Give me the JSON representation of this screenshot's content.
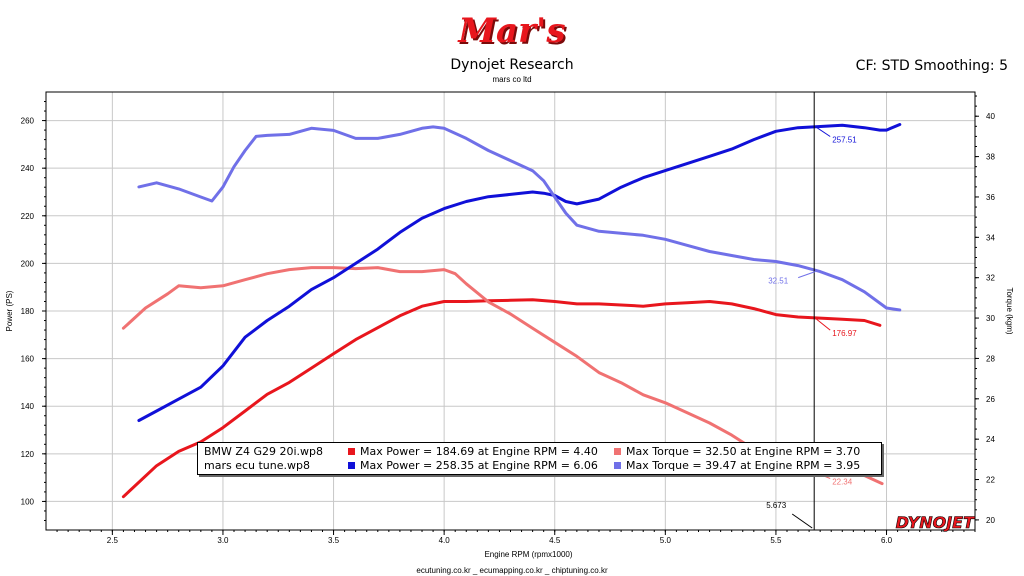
{
  "header": {
    "logo_text": "Mar's",
    "title": "Dynojet Research",
    "subtitle": "mars co ltd",
    "settings": "CF: STD Smoothing: 5"
  },
  "footer": "ecutuning.co.kr _ ecumapping.co.kr _ chiptuning.co.kr",
  "brand": "DYNOJET",
  "colors": {
    "stock_power": "#e8161d",
    "stock_torque": "#f07272",
    "tune_power": "#1010d8",
    "tune_torque": "#7070e8"
  },
  "chart_data": {
    "type": "line",
    "xlabel": "Engine RPM (rpmx1000)",
    "ylabel": "Power (PS)",
    "y2label": "Torque (kgm)",
    "xlim": [
      2.2,
      6.4
    ],
    "ylim": [
      88,
      272
    ],
    "y2lim": [
      19.5,
      41.2
    ],
    "x_ticks": [
      "2.5",
      "3.0",
      "3.5",
      "4.0",
      "4.5",
      "5.0",
      "5.5",
      "6.0"
    ],
    "y_ticks": [
      "100",
      "120",
      "140",
      "160",
      "180",
      "200",
      "220",
      "240",
      "260"
    ],
    "y2_ticks": [
      "20",
      "22",
      "24",
      "26",
      "28",
      "30",
      "32",
      "34",
      "36",
      "38",
      "40"
    ],
    "cursor": {
      "x": 5.673,
      "label": "5.673"
    },
    "cursor_values": {
      "tune_power": "257.51",
      "tune_torque": "32.51",
      "stock_power": "176.97",
      "stock_torque": "22.34"
    },
    "series": [
      {
        "name": "Max Power",
        "file": "BMW Z4 G29 20i.wp8",
        "axis": "left",
        "color": "#e8161d",
        "x": [
          2.55,
          2.7,
          2.8,
          2.9,
          3.0,
          3.1,
          3.2,
          3.3,
          3.4,
          3.5,
          3.6,
          3.7,
          3.8,
          3.9,
          4.0,
          4.1,
          4.2,
          4.3,
          4.4,
          4.5,
          4.6,
          4.7,
          4.8,
          4.9,
          5.0,
          5.1,
          5.2,
          5.3,
          5.4,
          5.5,
          5.6,
          5.7,
          5.8,
          5.9,
          5.97
        ],
        "y": [
          102,
          115,
          121,
          125,
          131,
          138,
          145,
          150,
          156,
          162,
          168,
          173,
          178,
          182,
          184,
          184,
          184.3,
          184.5,
          184.69,
          184,
          183,
          183,
          182.5,
          182,
          183,
          183.5,
          184,
          183,
          181,
          178.5,
          177.5,
          177,
          176.5,
          176,
          174
        ]
      },
      {
        "name": "Max Torque",
        "file": "BMW Z4 G29 20i.wp8",
        "axis": "right",
        "color": "#f07272",
        "x": [
          2.55,
          2.65,
          2.75,
          2.8,
          2.9,
          3.0,
          3.1,
          3.2,
          3.3,
          3.4,
          3.5,
          3.6,
          3.7,
          3.8,
          3.9,
          4.0,
          4.05,
          4.1,
          4.2,
          4.3,
          4.4,
          4.5,
          4.6,
          4.7,
          4.8,
          4.9,
          5.0,
          5.1,
          5.2,
          5.3,
          5.4,
          5.5,
          5.6,
          5.7,
          5.8,
          5.9,
          5.98
        ],
        "y": [
          29.5,
          30.5,
          31.2,
          31.6,
          31.5,
          31.6,
          31.9,
          32.2,
          32.4,
          32.5,
          32.5,
          32.45,
          32.5,
          32.3,
          32.3,
          32.4,
          32.2,
          31.7,
          30.8,
          30.2,
          29.5,
          28.8,
          28.1,
          27.3,
          26.8,
          26.2,
          25.8,
          25.3,
          24.8,
          24.2,
          23.5,
          23,
          22.7,
          22.5,
          22.35,
          22.2,
          21.8
        ]
      },
      {
        "name": "Max Power",
        "file": "mars ecu tune.wp8",
        "axis": "left",
        "color": "#1010d8",
        "x": [
          2.62,
          2.7,
          2.8,
          2.9,
          3.0,
          3.1,
          3.2,
          3.3,
          3.4,
          3.5,
          3.6,
          3.7,
          3.8,
          3.9,
          4.0,
          4.1,
          4.2,
          4.3,
          4.4,
          4.45,
          4.5,
          4.55,
          4.6,
          4.7,
          4.8,
          4.9,
          5.0,
          5.1,
          5.2,
          5.3,
          5.4,
          5.5,
          5.6,
          5.7,
          5.8,
          5.9,
          5.97,
          6.0,
          6.06
        ],
        "y": [
          134,
          138,
          143,
          148,
          157,
          169,
          176,
          182,
          189,
          194,
          200,
          206,
          213,
          219,
          223,
          226,
          228,
          229,
          230,
          229.5,
          228.5,
          226,
          225,
          227,
          232,
          236,
          239,
          242,
          245,
          248,
          252,
          255.5,
          257,
          257.5,
          258,
          257,
          256,
          256,
          258.35
        ]
      },
      {
        "name": "Max Torque",
        "file": "mars ecu tune.wp8",
        "axis": "right",
        "color": "#7070e8",
        "x": [
          2.62,
          2.7,
          2.8,
          2.9,
          2.95,
          3.0,
          3.05,
          3.1,
          3.15,
          3.2,
          3.3,
          3.4,
          3.5,
          3.6,
          3.7,
          3.8,
          3.9,
          3.95,
          4.0,
          4.1,
          4.2,
          4.3,
          4.4,
          4.45,
          4.5,
          4.55,
          4.6,
          4.7,
          4.8,
          4.9,
          5.0,
          5.1,
          5.2,
          5.3,
          5.4,
          5.5,
          5.6,
          5.7,
          5.8,
          5.9,
          6.0,
          6.06
        ],
        "y": [
          36.5,
          36.7,
          36.4,
          36,
          35.8,
          36.5,
          37.5,
          38.3,
          39,
          39.05,
          39.1,
          39.4,
          39.3,
          38.9,
          38.9,
          39.1,
          39.4,
          39.47,
          39.4,
          38.9,
          38.3,
          37.8,
          37.3,
          36.8,
          36,
          35.2,
          34.6,
          34.3,
          34.2,
          34.1,
          33.9,
          33.6,
          33.3,
          33.1,
          32.9,
          32.8,
          32.6,
          32.3,
          31.9,
          31.3,
          30.5,
          30.4
        ]
      }
    ]
  },
  "legend": {
    "rows": [
      {
        "file": "BMW Z4 G29 20i.wp8",
        "power": "Max Power = 184.69 at Engine RPM = 4.40",
        "torque": "Max Torque = 32.50 at Engine RPM = 3.70"
      },
      {
        "file": "mars ecu tune.wp8",
        "power": "Max Power = 258.35 at Engine RPM = 6.06",
        "torque": "Max Torque = 39.47 at Engine RPM = 3.95"
      }
    ]
  }
}
